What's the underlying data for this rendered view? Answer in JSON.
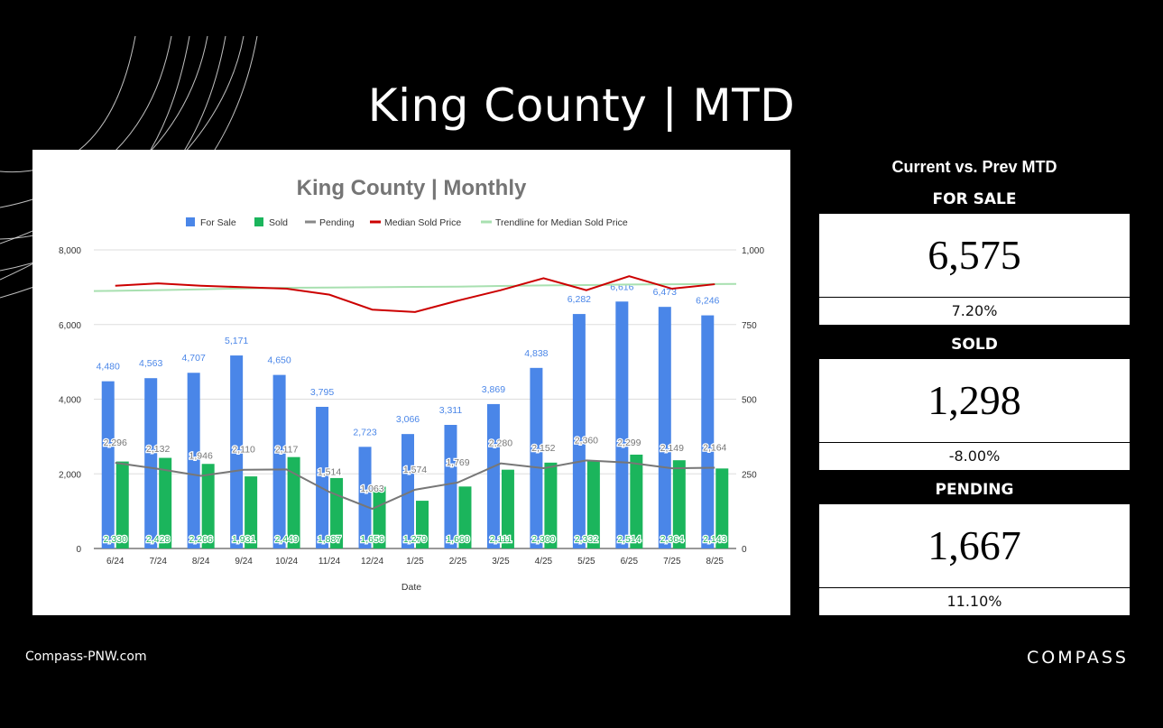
{
  "header": {
    "title": "King County | MTD"
  },
  "footer": {
    "url": "Compass-PNW.com",
    "brand": "COMPASS"
  },
  "side_panel": {
    "title": "Current vs. Prev MTD",
    "stats": [
      {
        "label": "FOR SALE",
        "value": "6,575",
        "change": "7.20%"
      },
      {
        "label": "SOLD",
        "value": "1,298",
        "change": "-8.00%"
      },
      {
        "label": "PENDING",
        "value": "1,667",
        "change": "11.10%"
      }
    ]
  },
  "chart_data": {
    "type": "bar",
    "title": "King County | Monthly",
    "xlabel": "Date",
    "ylabel": "",
    "ylim": [
      0,
      8000
    ],
    "y2lim": [
      0,
      1000
    ],
    "yticks": [
      "0",
      "2,000",
      "4,000",
      "6,000",
      "8,000"
    ],
    "y2ticks": [
      "0",
      "250",
      "500",
      "750",
      "1,000"
    ],
    "grid": true,
    "legend_position": "top",
    "categories": [
      "6/24",
      "7/24",
      "8/24",
      "9/24",
      "10/24",
      "11/24",
      "12/24",
      "1/25",
      "2/25",
      "3/25",
      "4/25",
      "5/25",
      "6/25",
      "7/25",
      "8/25"
    ],
    "series": [
      {
        "name": "For Sale",
        "type": "bar",
        "color": "#4a86e8",
        "axis": "left",
        "values": [
          4480,
          4563,
          4707,
          5171,
          4650,
          3795,
          2723,
          3066,
          3311,
          3869,
          4838,
          6282,
          6616,
          6473,
          6246
        ],
        "labels": [
          "4,480",
          "4,563",
          "4,707",
          "5,171",
          "4,650",
          "3,795",
          "2,723",
          "3,066",
          "3,311",
          "3,869",
          "4,838",
          "6,282",
          "6,616",
          "6,473",
          "6,246"
        ]
      },
      {
        "name": "Sold",
        "type": "bar",
        "color": "#1bb55c",
        "axis": "left",
        "values": [
          2330,
          2428,
          2266,
          1931,
          2449,
          1887,
          1656,
          1279,
          1660,
          2111,
          2300,
          2332,
          2514,
          2364,
          2143
        ],
        "labels": [
          "2,330",
          "2,428",
          "2,266",
          "1,931",
          "2,449",
          "1,887",
          "1,656",
          "1,279",
          "1,660",
          "2,111",
          "2,300",
          "2,332",
          "2,514",
          "2,364",
          "2,143"
        ]
      },
      {
        "name": "Pending",
        "type": "line",
        "color": "#888888",
        "axis": "left",
        "values": [
          2296,
          2132,
          1946,
          2110,
          2117,
          1514,
          1063,
          1574,
          1769,
          2280,
          2152,
          2360,
          2299,
          2149,
          2164
        ],
        "labels": [
          "2,296",
          "2,132",
          "1,946",
          "2,110",
          "2,117",
          "1,514",
          "1,063",
          "1,574",
          "1,769",
          "2,280",
          "2,152",
          "2,360",
          "2,299",
          "2,149",
          "2,164"
        ]
      },
      {
        "name": "Median Sold Price",
        "type": "line",
        "color": "#cc0000",
        "axis": "right",
        "values": [
          880,
          888,
          880,
          875,
          870,
          850,
          800,
          792,
          830,
          865,
          905,
          865,
          912,
          870,
          885
        ]
      },
      {
        "name": "Trendline for Median Sold Price",
        "type": "line",
        "color": "#a8e0b0",
        "axis": "right",
        "values": [
          862,
          865,
          868,
          871,
          873,
          874,
          875,
          876,
          877,
          879,
          881,
          882,
          884,
          885,
          886
        ]
      }
    ]
  }
}
